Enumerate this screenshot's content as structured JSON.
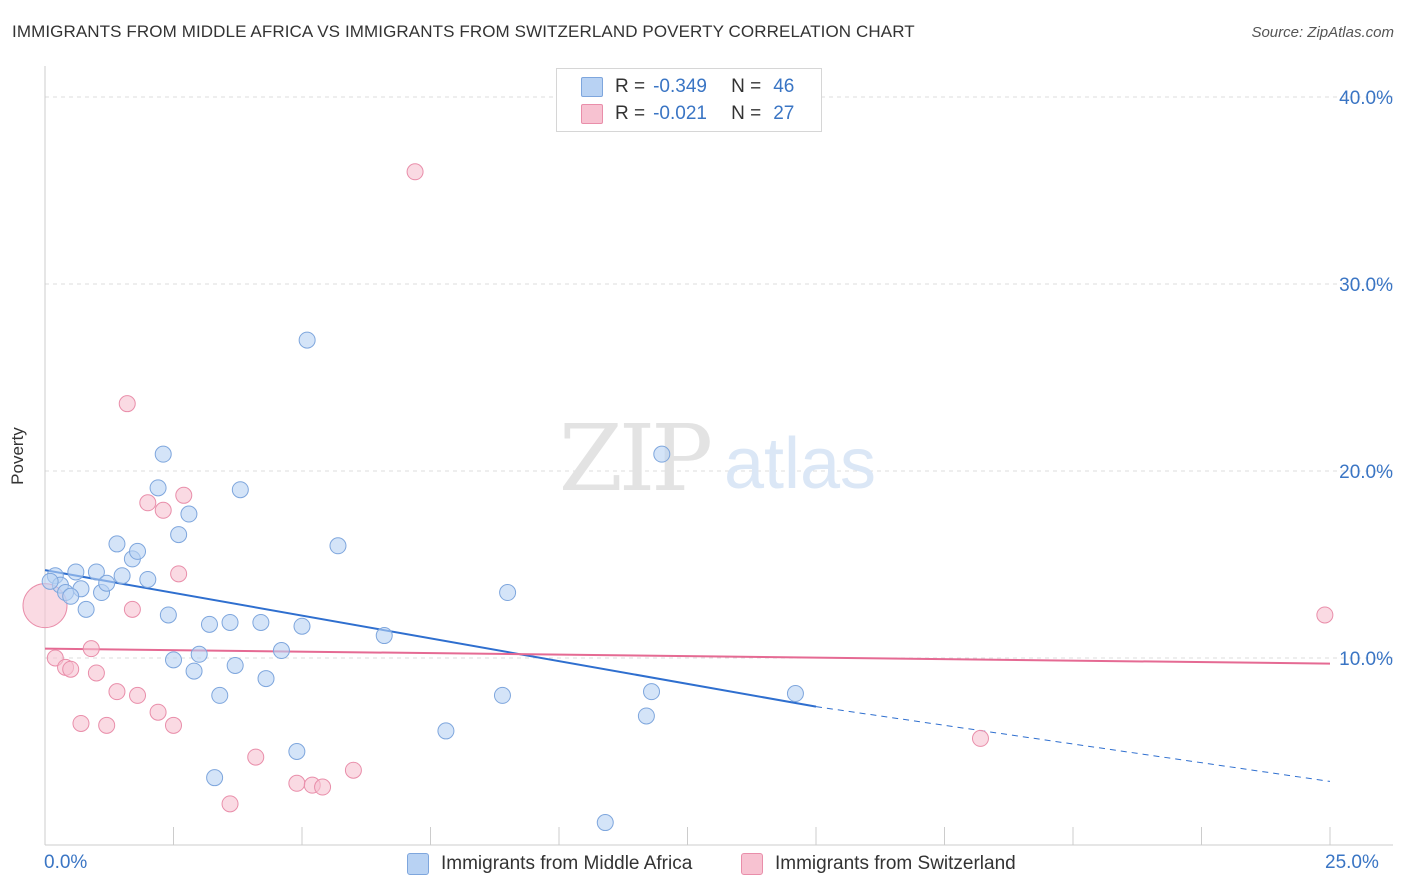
{
  "header": {
    "title": "IMMIGRANTS FROM MIDDLE AFRICA VS IMMIGRANTS FROM SWITZERLAND POVERTY CORRELATION CHART",
    "source": "Source: ZipAtlas.com"
  },
  "watermark": {
    "zip": "ZIP",
    "atlas": "atlas"
  },
  "legend": {
    "series1": {
      "r_label": "R =",
      "r_value": "-0.349",
      "n_label": "N =",
      "n_value": "46"
    },
    "series2": {
      "r_label": "R =",
      "r_value": "-0.021",
      "n_label": "N =",
      "n_value": "27"
    }
  },
  "colors": {
    "blue_fill": "#b8d2f3",
    "blue_stroke": "#7ea6dd",
    "blue_line": "#2f6fcf",
    "pink_fill": "#f7c2d1",
    "pink_stroke": "#e98eaa",
    "pink_line": "#e56a93",
    "grid": "#dddddd",
    "tick_text": "#3a75c4"
  },
  "chart_data": {
    "type": "scatter",
    "title": "IMMIGRANTS FROM MIDDLE AFRICA VS IMMIGRANTS FROM SWITZERLAND POVERTY CORRELATION CHART",
    "xlabel": "",
    "ylabel": "Poverty",
    "xlim": [
      0,
      25
    ],
    "ylim": [
      0,
      40
    ],
    "x_tick_labels": [
      "0.0%",
      "25.0%"
    ],
    "y_ticks": [
      10,
      20,
      30,
      40
    ],
    "y_tick_labels": [
      "10.0%",
      "20.0%",
      "30.0%",
      "40.0%"
    ],
    "legend_position": "top-center",
    "series": [
      {
        "name": "Immigrants from Middle Africa",
        "color": "#b8d2f3",
        "points": [
          [
            0.2,
            14.4
          ],
          [
            0.3,
            13.9
          ],
          [
            0.4,
            13.5
          ],
          [
            0.6,
            14.6
          ],
          [
            0.7,
            13.7
          ],
          [
            0.8,
            12.6
          ],
          [
            1.0,
            14.6
          ],
          [
            1.1,
            13.5
          ],
          [
            1.2,
            14.0
          ],
          [
            1.4,
            16.1
          ],
          [
            1.5,
            14.4
          ],
          [
            1.7,
            15.3
          ],
          [
            1.8,
            15.7
          ],
          [
            2.0,
            14.2
          ],
          [
            2.2,
            19.1
          ],
          [
            2.3,
            20.9
          ],
          [
            2.4,
            12.3
          ],
          [
            2.5,
            9.9
          ],
          [
            2.6,
            16.6
          ],
          [
            2.8,
            17.7
          ],
          [
            2.9,
            9.3
          ],
          [
            3.0,
            10.2
          ],
          [
            3.2,
            11.8
          ],
          [
            3.3,
            3.6
          ],
          [
            3.4,
            8.0
          ],
          [
            3.6,
            11.9
          ],
          [
            3.7,
            9.6
          ],
          [
            3.8,
            19.0
          ],
          [
            4.2,
            11.9
          ],
          [
            4.3,
            8.9
          ],
          [
            4.6,
            10.4
          ],
          [
            4.9,
            5.0
          ],
          [
            5.0,
            11.7
          ],
          [
            5.1,
            27.0
          ],
          [
            5.7,
            16.0
          ],
          [
            6.6,
            11.2
          ],
          [
            7.8,
            6.1
          ],
          [
            8.9,
            8.0
          ],
          [
            9.0,
            13.5
          ],
          [
            10.9,
            1.2
          ],
          [
            11.7,
            6.9
          ],
          [
            11.8,
            8.2
          ],
          [
            12.0,
            20.9
          ],
          [
            14.6,
            8.1
          ],
          [
            0.1,
            14.1
          ],
          [
            0.5,
            13.3
          ]
        ]
      },
      {
        "name": "Immigrants from Switzerland",
        "color": "#f7c2d1",
        "points": [
          [
            0.0,
            12.8
          ],
          [
            0.2,
            10.0
          ],
          [
            0.4,
            9.5
          ],
          [
            0.5,
            9.4
          ],
          [
            0.7,
            6.5
          ],
          [
            0.9,
            10.5
          ],
          [
            1.0,
            9.2
          ],
          [
            1.2,
            6.4
          ],
          [
            1.4,
            8.2
          ],
          [
            1.6,
            23.6
          ],
          [
            1.7,
            12.6
          ],
          [
            1.8,
            8.0
          ],
          [
            2.0,
            18.3
          ],
          [
            2.2,
            7.1
          ],
          [
            2.3,
            17.9
          ],
          [
            2.5,
            6.4
          ],
          [
            2.6,
            14.5
          ],
          [
            2.7,
            18.7
          ],
          [
            3.6,
            2.2
          ],
          [
            4.1,
            4.7
          ],
          [
            4.9,
            3.3
          ],
          [
            5.2,
            3.2
          ],
          [
            5.4,
            3.1
          ],
          [
            6.0,
            4.0
          ],
          [
            7.2,
            36.0
          ],
          [
            18.2,
            5.7
          ],
          [
            24.9,
            12.3
          ]
        ]
      }
    ],
    "trend_lines": [
      {
        "series": "Immigrants from Middle Africa",
        "x": [
          0,
          15
        ],
        "y": [
          14.7,
          7.4
        ],
        "dashed_extension_to_x": 25,
        "dashed_extension_y": 3.4
      },
      {
        "series": "Immigrants from Switzerland",
        "x": [
          0,
          25
        ],
        "y": [
          10.5,
          9.7
        ]
      }
    ]
  }
}
